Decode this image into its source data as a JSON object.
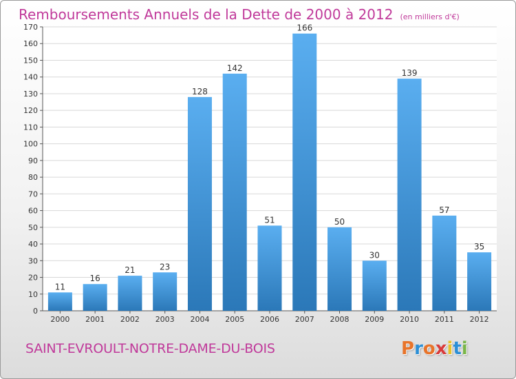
{
  "header": {
    "title": "Remboursements Annuels de la Dette de 2000 à 2012",
    "unit": "(en milliers d'€)"
  },
  "footer": {
    "commune": "SAINT-EVROULT-NOTRE-DAME-DU-BOIS",
    "logo_text": "Proxiti",
    "logo_colors": [
      "#e8742a",
      "#2b8fd6",
      "#e8742a",
      "#d93b3b",
      "#e8c22a",
      "#2b8fd6",
      "#7ab648"
    ]
  },
  "colors": {
    "title": "#c0399a",
    "bar_top": "#5aaef0",
    "bar_bottom": "#2b78b8",
    "grid": "#d8d8d8"
  },
  "chart_data": {
    "type": "bar",
    "title": "Remboursements Annuels de la Dette de 2000 à 2012",
    "xlabel": "",
    "ylabel": "",
    "categories": [
      "2000",
      "2001",
      "2002",
      "2003",
      "2004",
      "2005",
      "2006",
      "2007",
      "2008",
      "2009",
      "2010",
      "2011",
      "2012"
    ],
    "values": [
      11,
      16,
      21,
      23,
      128,
      142,
      51,
      166,
      50,
      30,
      139,
      57,
      35
    ],
    "ylim": [
      0,
      170
    ],
    "yticks": [
      0,
      10,
      20,
      30,
      40,
      50,
      60,
      70,
      80,
      90,
      100,
      110,
      120,
      130,
      140,
      150,
      160,
      170
    ],
    "grid": true,
    "data_labels": true
  }
}
